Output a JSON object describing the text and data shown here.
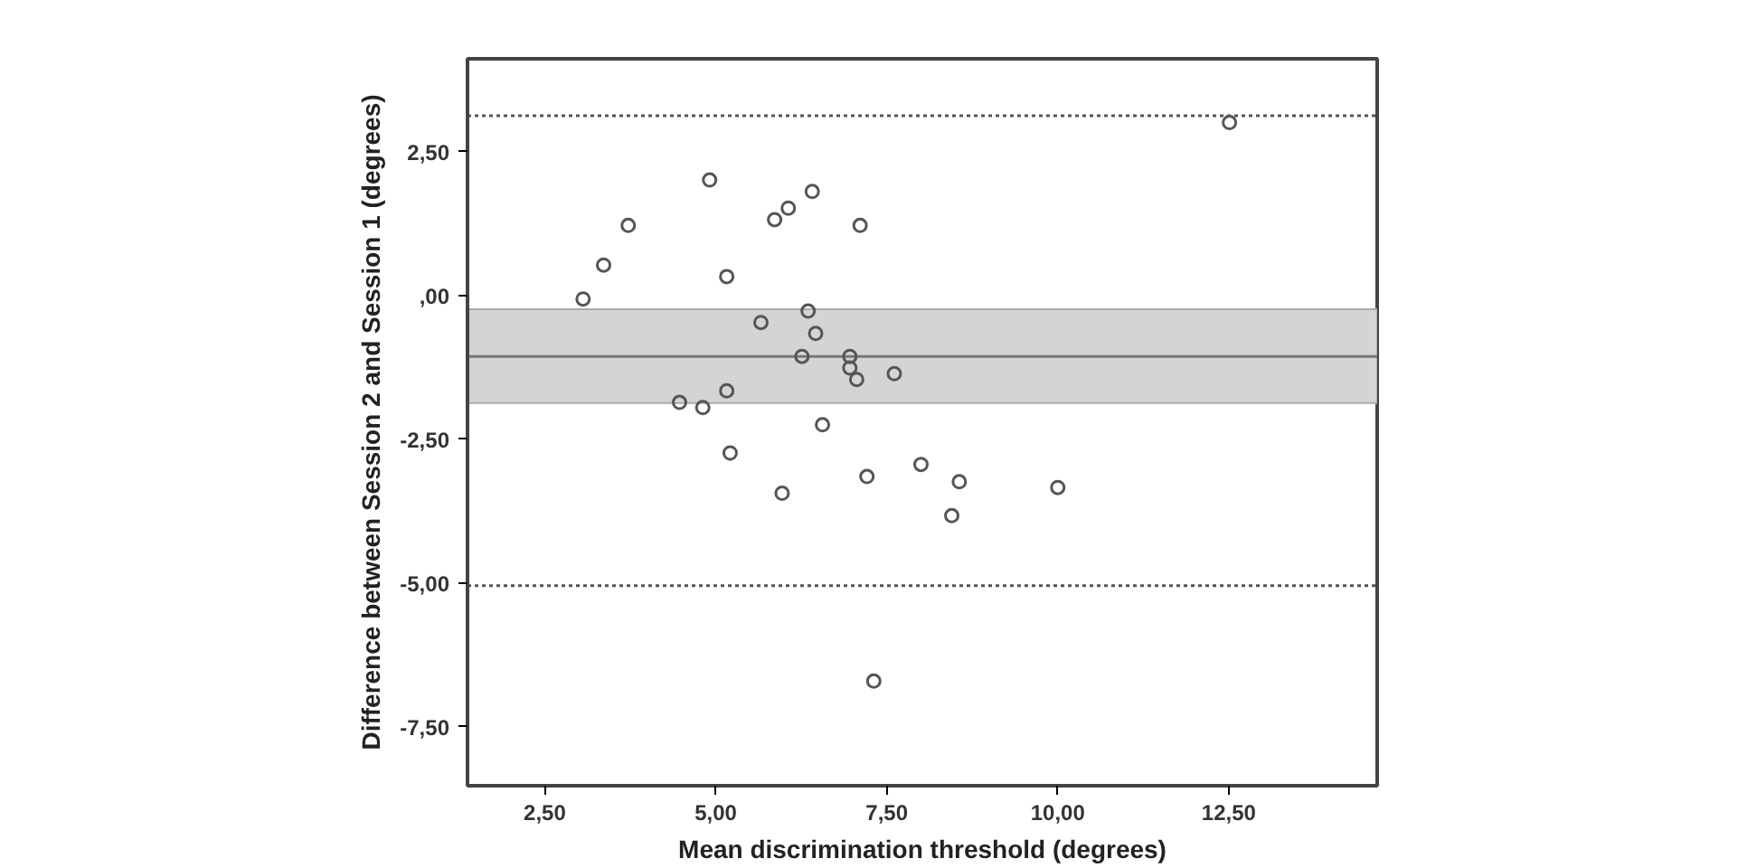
{
  "chart_data": {
    "type": "scatter",
    "xlabel": "Mean discrimination threshold (degrees)",
    "ylabel": "Difference between Session 2 and Session 1 (degrees)",
    "xlim": [
      1.37,
      14.67
    ],
    "ylim": [
      -8.53,
      4.12
    ],
    "xticks": [
      {
        "value": 2.5,
        "label": "2,50"
      },
      {
        "value": 5,
        "label": "5,00"
      },
      {
        "value": 7.5,
        "label": "7,50"
      },
      {
        "value": 10,
        "label": "10,00"
      },
      {
        "value": 12.5,
        "label": "12,50"
      }
    ],
    "yticks": [
      {
        "value": -7.5,
        "label": "-7,50"
      },
      {
        "value": -5,
        "label": "-5,00"
      },
      {
        "value": -2.5,
        "label": "-2,50"
      },
      {
        "value": 0,
        "label": ",00"
      },
      {
        "value": 2.5,
        "label": "2,50"
      }
    ],
    "grid": false,
    "marker": "circle",
    "series": [
      {
        "color": "#555555",
        "x": [
          3.06,
          3.36,
          3.72,
          4.91,
          5.16,
          5.86,
          6.06,
          6.41,
          7.11,
          5.66,
          6.35,
          6.46,
          6.26,
          6.96,
          6.96,
          7.06,
          4.47,
          4.81,
          5.16,
          6.56,
          5.21,
          7.61,
          12.51,
          5.97,
          7.21,
          7.31,
          8.0,
          8.56,
          8.45,
          10.0
        ],
        "values": [
          -0.06,
          0.53,
          1.22,
          2.01,
          0.33,
          1.32,
          1.52,
          1.81,
          1.22,
          -0.47,
          -0.27,
          -0.66,
          -1.06,
          -1.06,
          -1.26,
          -1.46,
          -1.86,
          -1.95,
          -1.66,
          -2.25,
          -2.74,
          -1.36,
          3.01,
          -3.44,
          -3.15,
          -6.71,
          -2.94,
          -3.24,
          -3.83,
          -3.34
        ]
      }
    ],
    "bands": [
      {
        "axis": "y",
        "from": -1.87,
        "to": -0.24,
        "color": "#d4d4d4"
      }
    ],
    "ref_lines": [
      {
        "axis": "y",
        "value": -1.06,
        "color": "#777777",
        "line_style": "solid"
      },
      {
        "axis": "y",
        "value": 3.13,
        "color": "#555555",
        "line_style": "dotted"
      },
      {
        "axis": "y",
        "value": -5.05,
        "color": "#555555",
        "line_style": "dotted"
      }
    ]
  }
}
